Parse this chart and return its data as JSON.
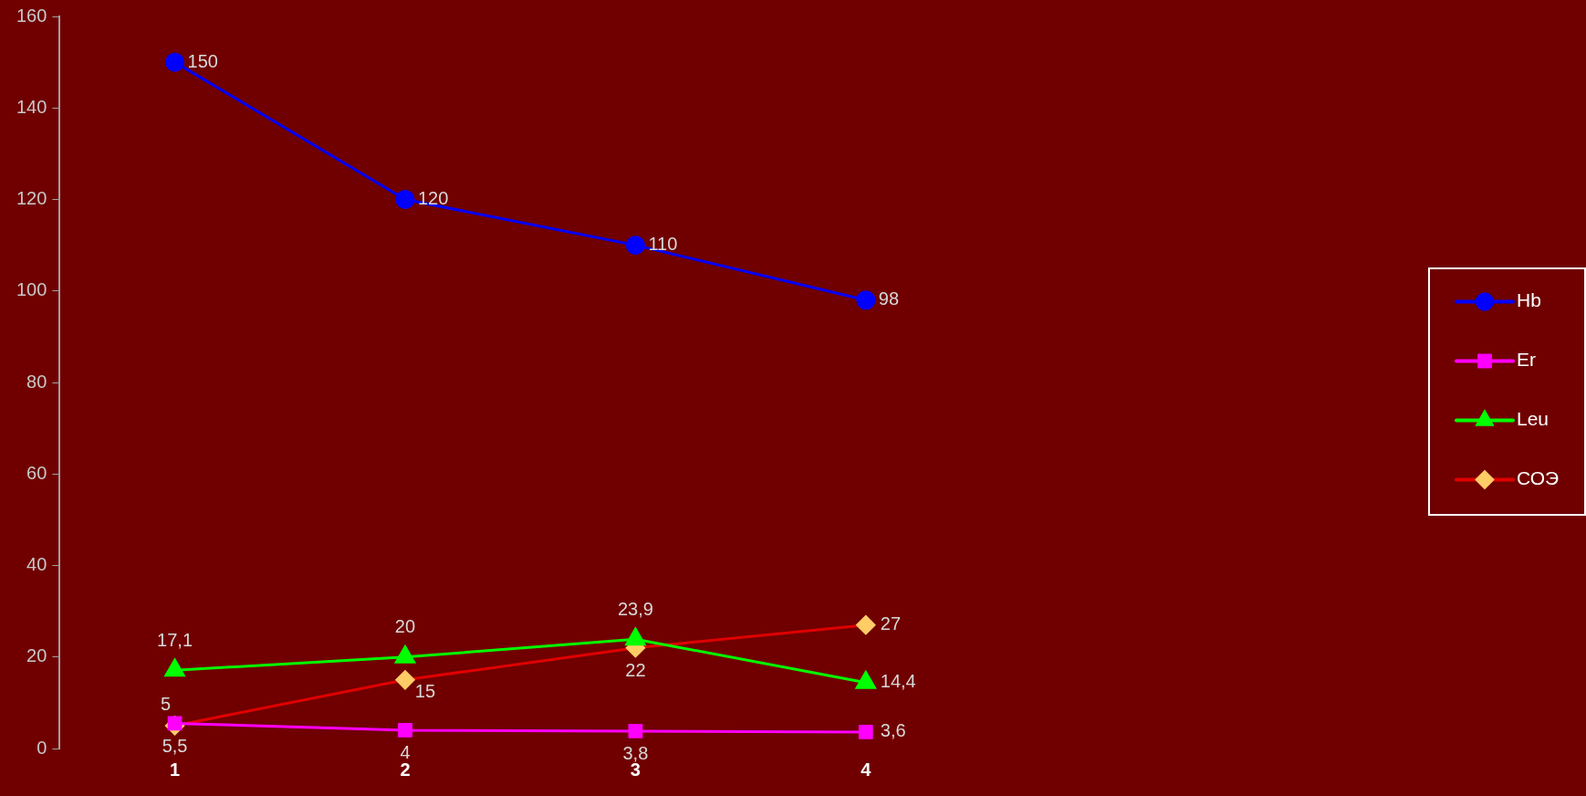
{
  "chart_data": {
    "type": "line",
    "categories": [
      "1",
      "2",
      "3",
      "4"
    ],
    "series": [
      {
        "name": "Hb",
        "color": "#0000ff",
        "marker": "circle",
        "values": [
          150,
          120,
          110,
          98
        ],
        "value_labels": [
          "150",
          "120",
          "110",
          "98"
        ]
      },
      {
        "name": "Er",
        "color": "#ff00ff",
        "marker": "square",
        "values": [
          5.5,
          4,
          3.8,
          3.6
        ],
        "value_labels": [
          "5,5",
          "4",
          "3,8",
          "3,6"
        ]
      },
      {
        "name": "Leu",
        "color": "#00ff00",
        "marker": "triangle",
        "values": [
          17.1,
          20,
          23.9,
          14.4
        ],
        "value_labels": [
          "17,1",
          "20",
          "23,9",
          "14,4"
        ]
      },
      {
        "name": "СОЭ",
        "color": "#e00000",
        "colors": [
          "#ffcc66",
          "#ffcc66",
          "#ffcc66",
          "#ffcc66"
        ],
        "marker": "diamond",
        "values": [
          5,
          15,
          22,
          27
        ],
        "value_labels": [
          "5",
          "15",
          "22",
          "27"
        ]
      }
    ],
    "ylim": [
      0,
      160
    ],
    "yticks": [
      0,
      20,
      40,
      60,
      80,
      100,
      120,
      140,
      160
    ],
    "grid": false,
    "legend": "right",
    "line_style": "solid"
  }
}
